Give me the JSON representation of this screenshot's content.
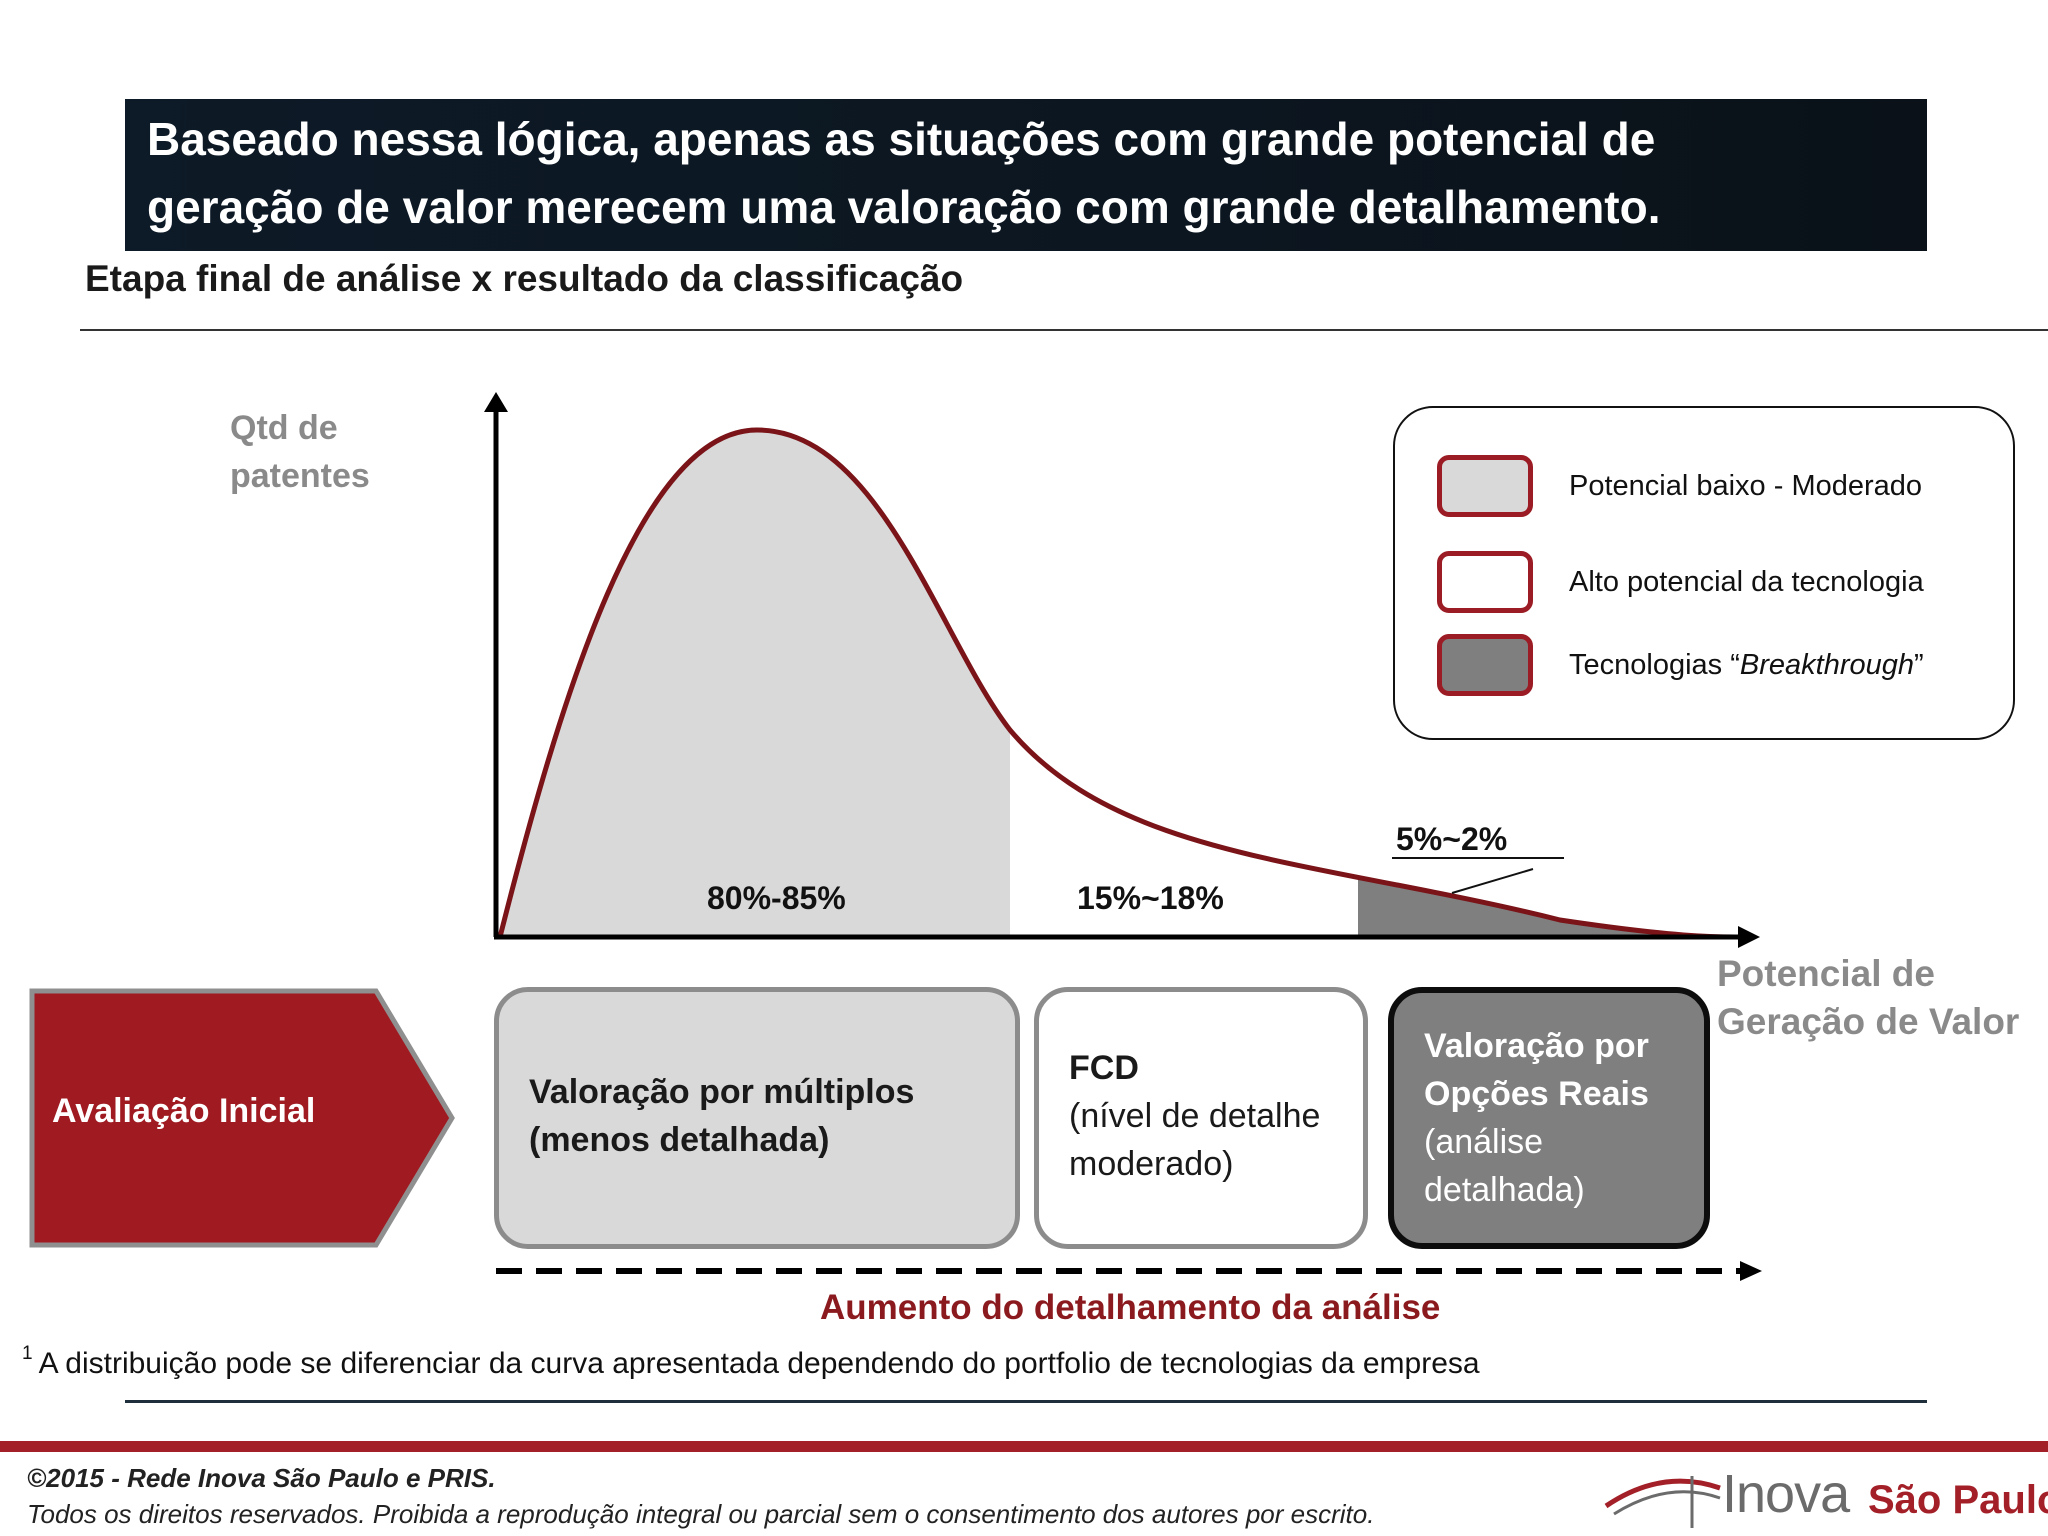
{
  "banner": {
    "line1": "Baseado nessa lógica, apenas as situações com grande potencial de",
    "line2": "geração de valor merecem uma valoração com grande  detalhamento."
  },
  "subtitle": "Etapa final de análise x resultado da classificação",
  "chart": {
    "y_axis_label": [
      "Qtd de",
      "patentes"
    ],
    "x_axis_label": [
      "Potencial de",
      "Geração de Valor"
    ],
    "segments": [
      {
        "label": "80%-85%",
        "category": "Potencial baixo - Moderado"
      },
      {
        "label": "15%~18%",
        "category": "Alto potencial da tecnologia"
      },
      {
        "label": "5%~2%",
        "category": "Tecnologias Breakthrough"
      }
    ]
  },
  "legend": {
    "items": [
      {
        "label": "Potencial baixo - Moderado",
        "fill": "#d9d9d9"
      },
      {
        "label": "Alto potencial da tecnologia",
        "fill": "#ffffff"
      },
      {
        "label_prefix": "Tecnologias “",
        "label_italic": "Breakthrough",
        "label_suffix": "”",
        "fill": "#7f7f7f"
      }
    ],
    "border_color": "#9b1c24"
  },
  "stages": {
    "initial": "Avaliação Inicial",
    "box1": {
      "line1": "Valoração por múltiplos",
      "line2": "(menos detalhada)"
    },
    "box2": {
      "line1": "FCD",
      "line2": "(nível de detalhe",
      "line3": "moderado)"
    },
    "box3": {
      "line1": "Valoração por",
      "line2": "Opções Reais",
      "line3": "(análise",
      "line4": "detalhada)"
    }
  },
  "arrow_caption": "Aumento do detalhamento da análise",
  "footnote": {
    "marker": "1",
    "text": "A distribuição pode se diferenciar da curva apresentada dependendo do portfolio de tecnologias da empresa"
  },
  "footer": {
    "copyright": "©2015 - Rede Inova São Paulo e PRIS.",
    "rights": "Todos os direitos reservados. Proibida a reprodução integral ou parcial sem o consentimento dos autores por escrito.",
    "logo_word1": "Inova",
    "logo_word2": "São Paulo"
  },
  "colors": {
    "accent_red": "#9b1c24",
    "curve": "#7a1418",
    "banner_bg": "#0d1a27",
    "light_gray": "#d9d9d9",
    "dark_gray": "#7f7f7f"
  }
}
